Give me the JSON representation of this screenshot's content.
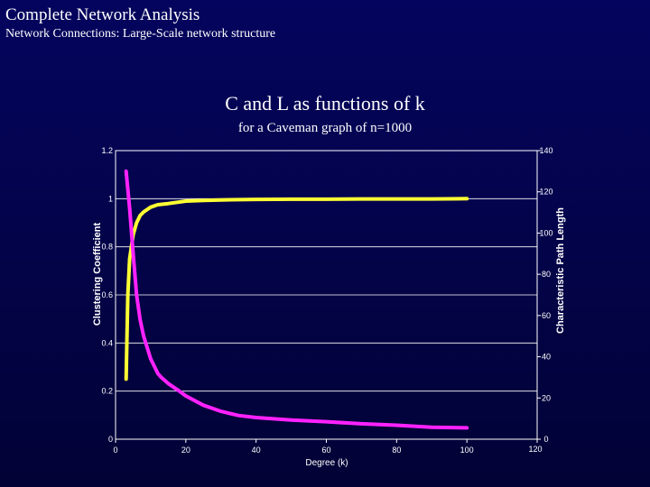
{
  "header": {
    "title": "Complete Network Analysis",
    "subtitle": "Network Connections: Large-Scale network structure"
  },
  "colors": {
    "background": "#04045e",
    "clustering": "#ffff33",
    "path_length": "#ff22ff",
    "grid": "#ffffff"
  },
  "chart_data": {
    "type": "line",
    "title": "C and L as functions of k",
    "subtitle": "for a Caveman graph of n=1000",
    "xlabel": "Degree (k)",
    "ylabel": "Clustering Coefficient",
    "y2label": "Characteristic Path Length",
    "xlim": [
      0,
      120
    ],
    "ylim": [
      0,
      1.2
    ],
    "y2lim": [
      0,
      140
    ],
    "grid": true,
    "x_ticks": [
      "0",
      "20",
      "40",
      "60",
      "80",
      "100",
      "120"
    ],
    "y_ticks": [
      "0",
      "0.2",
      "0.4",
      "0.6",
      "0.8",
      "1",
      "1.2"
    ],
    "y2_ticks": [
      "0",
      "20",
      "40",
      "60",
      "80",
      "100",
      "120",
      "140"
    ],
    "series": [
      {
        "axis": "left",
        "x": [
          3,
          3.5,
          4,
          5,
          6,
          7,
          8,
          10,
          12,
          15,
          20,
          25,
          30,
          40,
          50,
          60,
          70,
          80,
          90,
          100
        ],
        "values": [
          0.25,
          0.6,
          0.75,
          0.85,
          0.9,
          0.93,
          0.945,
          0.965,
          0.975,
          0.98,
          0.99,
          0.993,
          0.995,
          0.997,
          0.998,
          0.998,
          0.999,
          0.999,
          0.999,
          1.0
        ]
      },
      {
        "axis": "right",
        "x": [
          3,
          4,
          5,
          6,
          7,
          8,
          10,
          12,
          13,
          15,
          18,
          20,
          25,
          30,
          35,
          40,
          50,
          60,
          70,
          80,
          90,
          100
        ],
        "values": [
          130,
          112,
          90,
          70,
          58,
          50,
          39,
          32,
          30,
          27,
          23.5,
          21,
          16.5,
          13.5,
          11.5,
          10.5,
          9.3,
          8.5,
          7.5,
          6.8,
          5.8,
          5.5
        ]
      }
    ]
  }
}
